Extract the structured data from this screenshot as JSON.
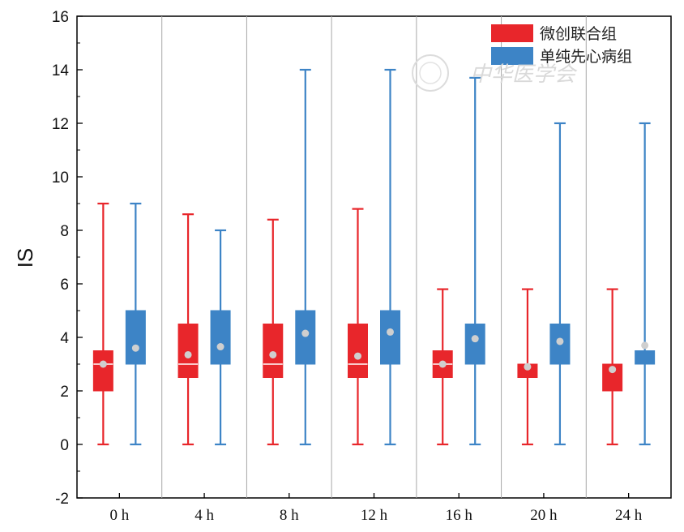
{
  "chart_data": {
    "type": "box",
    "ylabel": "IS",
    "xlabel": "",
    "ylim": [
      -2,
      16
    ],
    "yticks": [
      -2,
      0,
      2,
      4,
      6,
      8,
      10,
      12,
      14,
      16
    ],
    "categories": [
      "0 h",
      "4 h",
      "8 h",
      "12 h",
      "16 h",
      "20 h",
      "24 h"
    ],
    "legend_position": "top-right",
    "grid": false,
    "series": [
      {
        "name": "微创联合组",
        "color": "#e8262b",
        "boxes": [
          {
            "min": 0,
            "q1": 2,
            "median": 3,
            "q3": 3.5,
            "max": 9,
            "mean": 3.0
          },
          {
            "min": 0,
            "q1": 2.5,
            "median": 3,
            "q3": 4.5,
            "max": 8.6,
            "mean": 3.35
          },
          {
            "min": 0,
            "q1": 2.5,
            "median": 3,
            "q3": 4.5,
            "max": 8.4,
            "mean": 3.35
          },
          {
            "min": 0,
            "q1": 2.5,
            "median": 3,
            "q3": 4.5,
            "max": 8.8,
            "mean": 3.3
          },
          {
            "min": 0,
            "q1": 2.5,
            "median": 3,
            "q3": 3.5,
            "max": 5.8,
            "mean": 3.0
          },
          {
            "min": 0,
            "q1": 2.5,
            "median": 3,
            "q3": 3,
            "max": 5.8,
            "mean": 2.9
          },
          {
            "min": 0,
            "q1": 2,
            "median": 3,
            "q3": 3,
            "max": 5.8,
            "mean": 2.8
          }
        ]
      },
      {
        "name": "单纯先心病组",
        "color": "#3d84c6",
        "boxes": [
          {
            "min": 0,
            "q1": 3,
            "median": 3,
            "q3": 5,
            "max": 9,
            "mean": 3.6
          },
          {
            "min": 0,
            "q1": 3,
            "median": 3,
            "q3": 5,
            "max": 8,
            "mean": 3.65
          },
          {
            "min": 0,
            "q1": 3,
            "median": 3,
            "q3": 5,
            "max": 14,
            "mean": 4.15
          },
          {
            "min": 0,
            "q1": 3,
            "median": 3,
            "q3": 5,
            "max": 14,
            "mean": 4.2
          },
          {
            "min": 0,
            "q1": 3,
            "median": 3,
            "q3": 4.5,
            "max": 13.7,
            "mean": 3.95
          },
          {
            "min": 0,
            "q1": 3,
            "median": 3,
            "q3": 4.5,
            "max": 12,
            "mean": 3.85
          },
          {
            "min": 0,
            "q1": 3,
            "median": 3,
            "q3": 3.5,
            "max": 12,
            "mean": 3.7
          }
        ]
      }
    ],
    "mean_marker_color": "#cfcfcf",
    "watermark": "中华医学会"
  }
}
